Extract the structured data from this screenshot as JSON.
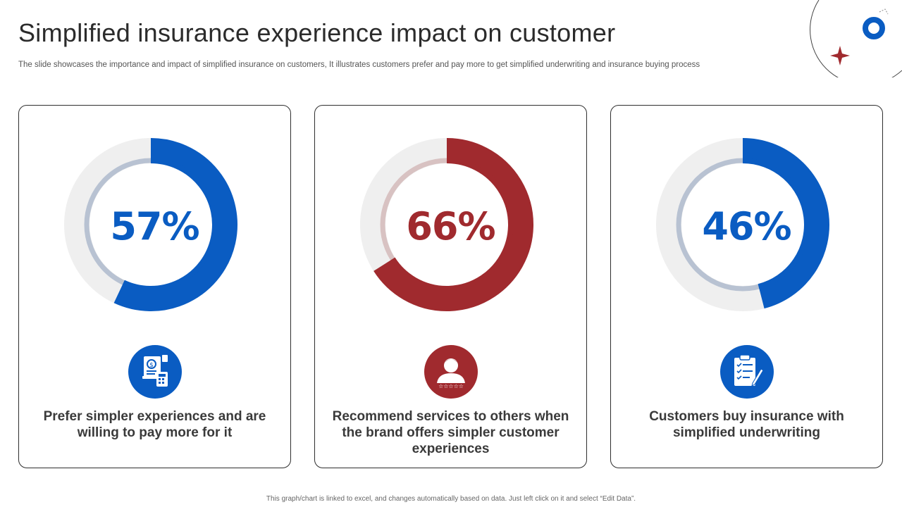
{
  "header": {
    "title": "Simplified insurance experience impact on customer",
    "subtitle": "The slide showcases the importance and impact of simplified insurance on customers, It illustrates customers prefer and pay more to get simplified underwriting and insurance buying process"
  },
  "colors": {
    "blue": "#0a5cc2",
    "red": "#a02a2e",
    "track": "#efefef"
  },
  "chart_data": [
    {
      "type": "pie",
      "values": [
        57,
        43
      ],
      "label": "57%",
      "caption": "Prefer simpler experiences and are willing to pay more for it",
      "color": "#0a5cc2",
      "inner_ring": "#b8c2d2",
      "icon": "money-calculator-icon"
    },
    {
      "type": "pie",
      "values": [
        66,
        34
      ],
      "label": "66%",
      "caption": "Recommend services to others when the brand offers simpler customer experiences",
      "color": "#a02a2e",
      "inner_ring": "#d8c2c2",
      "icon": "customer-rating-icon"
    },
    {
      "type": "pie",
      "values": [
        46,
        54
      ],
      "label": "46%",
      "caption": "Customers buy insurance with simplified underwriting",
      "color": "#0a5cc2",
      "inner_ring": "#b8c2d2",
      "icon": "clipboard-checklist-icon"
    }
  ],
  "footer": {
    "note": "This graph/chart is linked to excel, and changes automatically based on data. Just left click on it and select “Edit Data”."
  }
}
